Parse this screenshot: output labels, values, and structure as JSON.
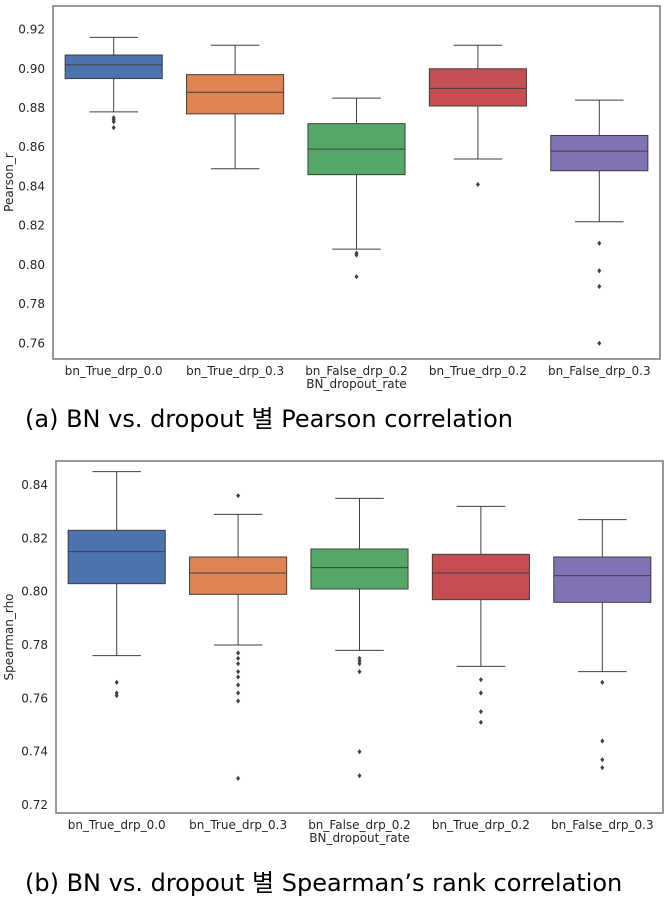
{
  "chart_data": [
    {
      "type": "box",
      "xlabel": "BN_dropout_rate",
      "ylabel": "Pearson_r",
      "ylim": [
        0.752,
        0.932
      ],
      "yticks": [
        "0.92",
        "0.90",
        "0.88",
        "0.86",
        "0.84",
        "0.82",
        "0.80",
        "0.78",
        "0.76"
      ],
      "grid": false,
      "categories": [
        "bn_True_drp_0.0",
        "bn_True_drp_0.3",
        "bn_False_drp_0.2",
        "bn_True_drp_0.2",
        "bn_False_drp_0.3"
      ],
      "colors": [
        "#4c72b0",
        "#dd8452",
        "#55a868",
        "#c44e52",
        "#8172b3"
      ],
      "boxes": [
        {
          "whislo": 0.878,
          "q1": 0.895,
          "med": 0.902,
          "q3": 0.907,
          "whishi": 0.916,
          "fliers": [
            0.875,
            0.874,
            0.873,
            0.87
          ]
        },
        {
          "whislo": 0.849,
          "q1": 0.877,
          "med": 0.888,
          "q3": 0.897,
          "whishi": 0.912,
          "fliers": []
        },
        {
          "whislo": 0.808,
          "q1": 0.846,
          "med": 0.859,
          "q3": 0.872,
          "whishi": 0.885,
          "fliers": [
            0.806,
            0.805,
            0.794
          ]
        },
        {
          "whislo": 0.854,
          "q1": 0.881,
          "med": 0.89,
          "q3": 0.9,
          "whishi": 0.912,
          "fliers": [
            0.841
          ]
        },
        {
          "whislo": 0.822,
          "q1": 0.848,
          "med": 0.858,
          "q3": 0.866,
          "whishi": 0.884,
          "fliers": [
            0.811,
            0.797,
            0.789,
            0.76
          ]
        }
      ],
      "caption": "(a) BN vs. dropout 별 Pearson correlation"
    },
    {
      "type": "box",
      "xlabel": "BN_dropout_rate",
      "ylabel": "Spearman_rho",
      "ylim": [
        0.717,
        0.849
      ],
      "yticks": [
        "0.84",
        "0.82",
        "0.80",
        "0.78",
        "0.76",
        "0.74",
        "0.72"
      ],
      "grid": false,
      "categories": [
        "bn_True_drp_0.0",
        "bn_True_drp_0.3",
        "bn_False_drp_0.2",
        "bn_True_drp_0.2",
        "bn_False_drp_0.3"
      ],
      "colors": [
        "#4c72b0",
        "#dd8452",
        "#55a868",
        "#c44e52",
        "#8172b3"
      ],
      "boxes": [
        {
          "whislo": 0.776,
          "q1": 0.803,
          "med": 0.815,
          "q3": 0.823,
          "whishi": 0.845,
          "fliers": [
            0.766,
            0.762,
            0.761
          ]
        },
        {
          "whislo": 0.78,
          "q1": 0.799,
          "med": 0.807,
          "q3": 0.813,
          "whishi": 0.829,
          "fliers": [
            0.836,
            0.777,
            0.775,
            0.773,
            0.77,
            0.768,
            0.765,
            0.762,
            0.759,
            0.73
          ]
        },
        {
          "whislo": 0.778,
          "q1": 0.801,
          "med": 0.809,
          "q3": 0.816,
          "whishi": 0.835,
          "fliers": [
            0.775,
            0.774,
            0.773,
            0.77,
            0.74,
            0.731
          ]
        },
        {
          "whislo": 0.772,
          "q1": 0.797,
          "med": 0.807,
          "q3": 0.814,
          "whishi": 0.832,
          "fliers": [
            0.767,
            0.762,
            0.755,
            0.751
          ]
        },
        {
          "whislo": 0.77,
          "q1": 0.796,
          "med": 0.806,
          "q3": 0.813,
          "whishi": 0.827,
          "fliers": [
            0.766,
            0.744,
            0.737,
            0.734
          ]
        }
      ],
      "caption": "(b) BN vs. dropout 별 Spearman’s rank correlation"
    }
  ]
}
